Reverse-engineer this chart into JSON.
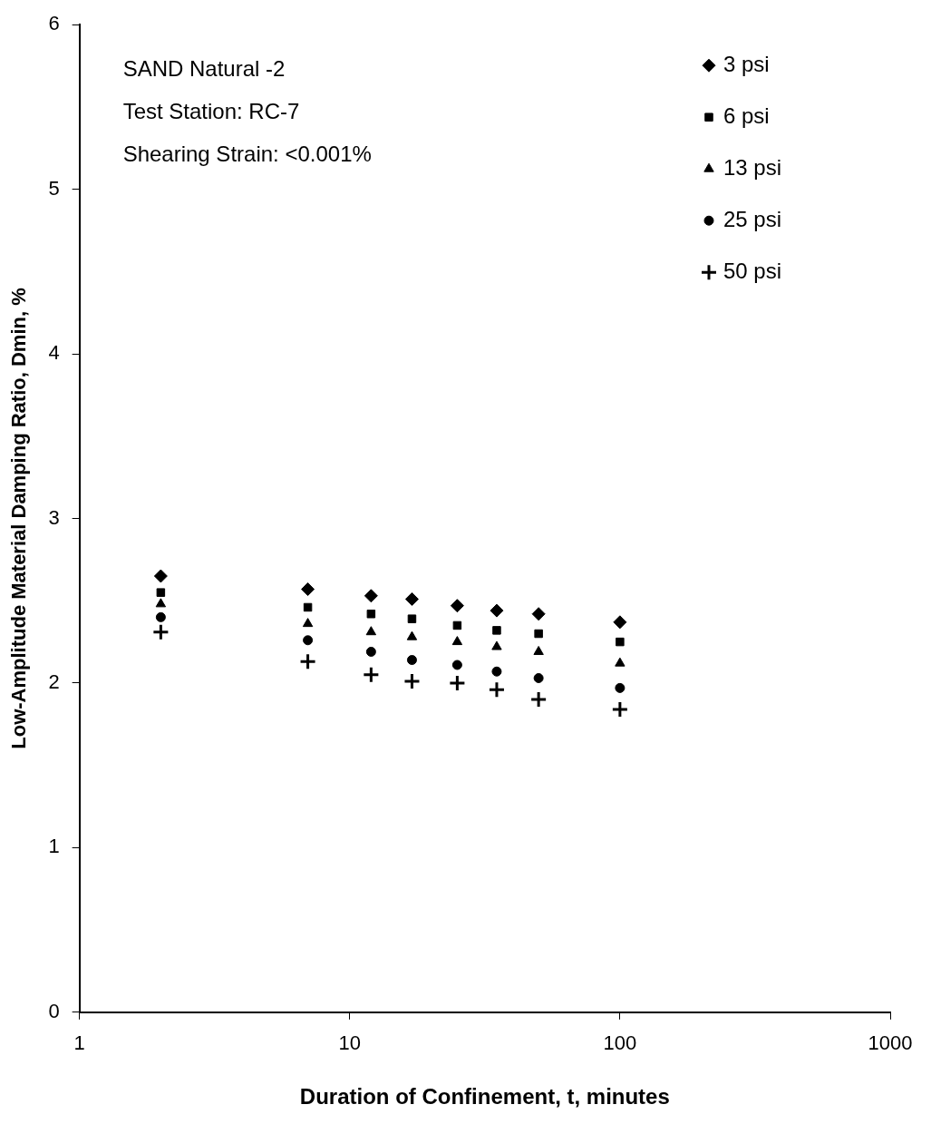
{
  "chart_data": {
    "type": "scatter",
    "xlabel": "Duration of Confinement, t, minutes",
    "ylabel": "Low-Amplitude Material Damping Ratio, Dmin, %",
    "annotations": [
      "SAND Natural -2",
      "Test Station: RC-7",
      "Shearing Strain: <0.001%"
    ],
    "x": [
      2,
      7,
      12,
      17,
      25,
      35,
      50,
      100
    ],
    "series": [
      {
        "name": "3 psi",
        "color": "#000000",
        "marker": "diamond",
        "values": [
          2.65,
          2.57,
          2.53,
          2.51,
          2.47,
          2.44,
          2.42,
          2.37
        ]
      },
      {
        "name": "6 psi",
        "color": "#000000",
        "marker": "square",
        "values": [
          2.55,
          2.46,
          2.42,
          2.39,
          2.35,
          2.32,
          2.3,
          2.25
        ]
      },
      {
        "name": "13 psi",
        "color": "#000000",
        "marker": "triangle",
        "values": [
          2.48,
          2.36,
          2.31,
          2.28,
          2.25,
          2.22,
          2.19,
          2.12
        ]
      },
      {
        "name": "25 psi",
        "color": "#000000",
        "marker": "circle",
        "values": [
          2.4,
          2.26,
          2.19,
          2.14,
          2.11,
          2.07,
          2.03,
          1.97
        ]
      },
      {
        "name": "50 psi",
        "color": "#000000",
        "marker": "cross",
        "values": [
          2.31,
          2.13,
          2.05,
          2.01,
          2.0,
          1.96,
          1.9,
          1.84
        ]
      }
    ],
    "log": "x",
    "xlim": [
      1,
      1000
    ],
    "xticks": [
      1,
      10,
      100,
      1000
    ],
    "ylim": [
      0,
      6
    ],
    "yticks": [
      0,
      1,
      2,
      3,
      4,
      5,
      6
    ],
    "grid": false,
    "legend": "top right"
  }
}
